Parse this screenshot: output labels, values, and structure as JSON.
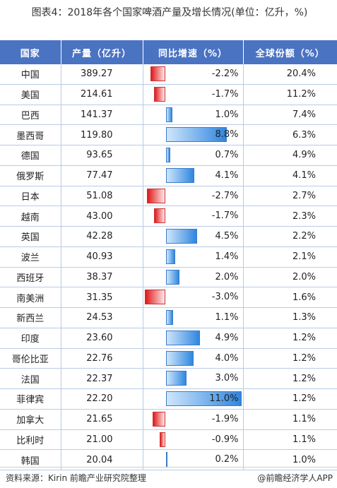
{
  "title": "图表4：2018年各个国家啤酒产量及增长情况(单位：亿升，%)",
  "headers": {
    "country": "国家",
    "output": "产量（亿升）",
    "yoy": "同比增速（%）",
    "share": "全球份额（%）"
  },
  "rows": [
    {
      "country": "中国",
      "output": "389.27",
      "yoy": "-2.2%",
      "yoy_value": -2.2,
      "share": "20.4%"
    },
    {
      "country": "美国",
      "output": "214.61",
      "yoy": "-1.7%",
      "yoy_value": -1.7,
      "share": "11.2%"
    },
    {
      "country": "巴西",
      "output": "141.37",
      "yoy": "1.0%",
      "yoy_value": 1.0,
      "share": "7.4%"
    },
    {
      "country": "墨西哥",
      "output": "119.80",
      "yoy": "8.8%",
      "yoy_value": 8.8,
      "share": "6.3%"
    },
    {
      "country": "德国",
      "output": "93.65",
      "yoy": "0.7%",
      "yoy_value": 0.7,
      "share": "4.9%"
    },
    {
      "country": "俄罗斯",
      "output": "77.47",
      "yoy": "4.1%",
      "yoy_value": 4.1,
      "share": "4.1%"
    },
    {
      "country": "日本",
      "output": "51.08",
      "yoy": "-2.7%",
      "yoy_value": -2.7,
      "share": "2.7%"
    },
    {
      "country": "越南",
      "output": "43.00",
      "yoy": "-1.7%",
      "yoy_value": -1.7,
      "share": "2.3%"
    },
    {
      "country": "英国",
      "output": "42.28",
      "yoy": "4.5%",
      "yoy_value": 4.5,
      "share": "2.2%"
    },
    {
      "country": "波兰",
      "output": "40.93",
      "yoy": "1.4%",
      "yoy_value": 1.4,
      "share": "2.1%"
    },
    {
      "country": "西班牙",
      "output": "38.37",
      "yoy": "2.0%",
      "yoy_value": 2.0,
      "share": "2.0%"
    },
    {
      "country": "南美洲",
      "output": "31.35",
      "yoy": "-3.0%",
      "yoy_value": -3.0,
      "share": "1.6%"
    },
    {
      "country": "新西兰",
      "output": "24.53",
      "yoy": "1.1%",
      "yoy_value": 1.1,
      "share": "1.3%"
    },
    {
      "country": "印度",
      "output": "23.60",
      "yoy": "4.9%",
      "yoy_value": 4.9,
      "share": "1.2%"
    },
    {
      "country": "哥伦比亚",
      "output": "22.76",
      "yoy": "4.0%",
      "yoy_value": 4.0,
      "share": "1.2%"
    },
    {
      "country": "法国",
      "output": "22.37",
      "yoy": "3.0%",
      "yoy_value": 3.0,
      "share": "1.2%"
    },
    {
      "country": "菲律宾",
      "output": "22.20",
      "yoy": "11.0%",
      "yoy_value": 11.0,
      "share": "1.2%"
    },
    {
      "country": "加拿大",
      "output": "21.65",
      "yoy": "-1.9%",
      "yoy_value": -1.9,
      "share": "1.1%"
    },
    {
      "country": "比利时",
      "output": "21.00",
      "yoy": "-0.9%",
      "yoy_value": -0.9,
      "share": "1.1%"
    },
    {
      "country": "韩国",
      "output": "20.04",
      "yoy": "0.2%",
      "yoy_value": 0.2,
      "share": "1.0%"
    }
  ],
  "colors": {
    "header_bg": "#4a73c2",
    "positive_bar": "#2f86e0",
    "negative_bar": "#e0191b"
  },
  "footer": {
    "source": "资料来源：Kirin 前瞻产业研究院整理",
    "brand": "@前瞻经济学人APP"
  }
}
